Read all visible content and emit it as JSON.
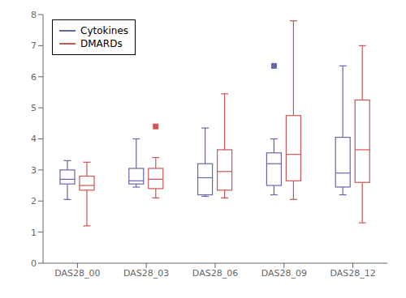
{
  "chart_data": {
    "type": "box",
    "categories": [
      "DAS28_00",
      "DAS28_03",
      "DAS28_06",
      "DAS28_09",
      "DAS28_12"
    ],
    "series": [
      {
        "name": "Cytokines",
        "color": "#6666aa",
        "boxes": [
          {
            "q1": 2.55,
            "median": 2.7,
            "q3": 3.0,
            "whisker_low": 2.05,
            "whisker_high": 3.3
          },
          {
            "q1": 2.55,
            "median": 2.65,
            "q3": 3.05,
            "whisker_low": 2.45,
            "whisker_high": 4.0
          },
          {
            "q1": 2.2,
            "median": 2.75,
            "q3": 3.2,
            "whisker_low": 2.15,
            "whisker_high": 4.35
          },
          {
            "q1": 2.5,
            "median": 3.2,
            "q3": 3.55,
            "whisker_low": 2.2,
            "whisker_high": 4.0
          },
          {
            "q1": 2.45,
            "median": 2.9,
            "q3": 4.05,
            "whisker_low": 2.2,
            "whisker_high": 6.35
          }
        ],
        "outliers": [
          {
            "category": "DAS28_09",
            "y": 6.35
          }
        ]
      },
      {
        "name": "DMARDs",
        "color": "#cc5555",
        "boxes": [
          {
            "q1": 2.35,
            "median": 2.5,
            "q3": 2.8,
            "whisker_low": 1.2,
            "whisker_high": 3.25
          },
          {
            "q1": 2.4,
            "median": 2.7,
            "q3": 3.05,
            "whisker_low": 2.1,
            "whisker_high": 3.4
          },
          {
            "q1": 2.35,
            "median": 2.95,
            "q3": 3.65,
            "whisker_low": 2.1,
            "whisker_high": 5.45
          },
          {
            "q1": 2.65,
            "median": 3.5,
            "q3": 4.75,
            "whisker_low": 2.05,
            "whisker_high": 7.8
          },
          {
            "q1": 2.6,
            "median": 3.65,
            "q3": 5.25,
            "whisker_low": 1.3,
            "whisker_high": 7.0
          }
        ],
        "outliers": [
          {
            "category": "DAS28_03",
            "y": 4.4
          }
        ]
      }
    ],
    "ylim": [
      0,
      8
    ],
    "yticks": [
      0,
      1,
      2,
      3,
      4,
      5,
      6,
      7,
      8
    ],
    "grid": false,
    "legend": "upper left"
  }
}
